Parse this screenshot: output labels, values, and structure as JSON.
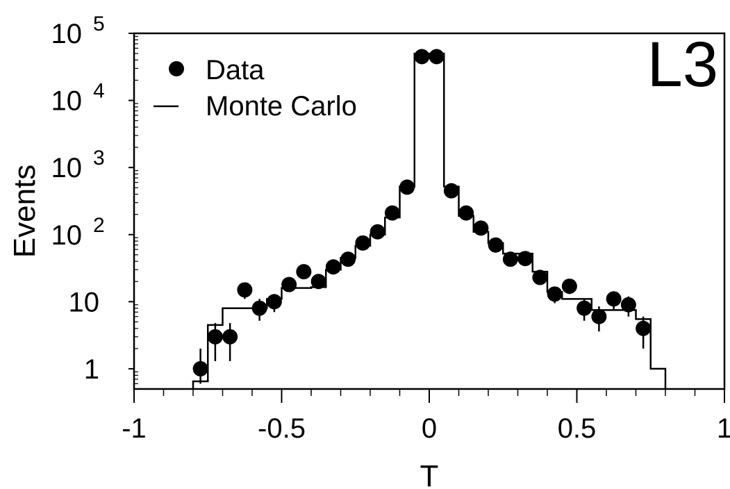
{
  "chart_data": {
    "type": "scatter",
    "xlabel": "T",
    "ylabel": "Events",
    "corner_label": "L3",
    "xlim": [
      -1,
      1
    ],
    "ylim": [
      0.5,
      100000
    ],
    "y_scale": "log",
    "grid": false,
    "legend_position": "top-left",
    "x_ticks": [
      {
        "value": -1,
        "label": "-1"
      },
      {
        "value": -0.5,
        "label": "-0.5"
      },
      {
        "value": 0,
        "label": "0"
      },
      {
        "value": 0.5,
        "label": "0.5"
      },
      {
        "value": 1,
        "label": "1"
      }
    ],
    "y_ticks": [
      {
        "value": 1,
        "label": "1"
      },
      {
        "value": 10,
        "label": "10"
      },
      {
        "value": 100,
        "base": "10",
        "exp": "2"
      },
      {
        "value": 1000,
        "base": "10",
        "exp": "3"
      },
      {
        "value": 10000,
        "base": "10",
        "exp": "4"
      },
      {
        "value": 100000,
        "base": "10",
        "exp": "5"
      }
    ],
    "series": [
      {
        "name": "Data",
        "kind": "points",
        "points": [
          {
            "x": -0.775,
            "y": 1,
            "lo": 0.6,
            "hi": 2.0
          },
          {
            "x": -0.725,
            "y": 3,
            "lo": 1.3,
            "hi": 4.8
          },
          {
            "x": -0.675,
            "y": 3,
            "lo": 1.3,
            "hi": 4.8
          },
          {
            "x": -0.625,
            "y": 15,
            "lo": 11,
            "hi": 19
          },
          {
            "x": -0.575,
            "y": 8,
            "lo": 5.2,
            "hi": 11
          },
          {
            "x": -0.525,
            "y": 10,
            "lo": 7,
            "hi": 13
          },
          {
            "x": -0.475,
            "y": 18,
            "lo": 14,
            "hi": 22
          },
          {
            "x": -0.425,
            "y": 28,
            "lo": 23,
            "hi": 33
          },
          {
            "x": -0.375,
            "y": 20,
            "lo": 16,
            "hi": 24
          },
          {
            "x": -0.325,
            "y": 33,
            "lo": 28,
            "hi": 39
          },
          {
            "x": -0.275,
            "y": 43,
            "lo": 37,
            "hi": 49
          },
          {
            "x": -0.225,
            "y": 75,
            "lo": 66,
            "hi": 84
          },
          {
            "x": -0.175,
            "y": 110,
            "lo": 100,
            "hi": 120
          },
          {
            "x": -0.125,
            "y": 210,
            "lo": 195,
            "hi": 225
          },
          {
            "x": -0.075,
            "y": 510,
            "lo": 488,
            "hi": 532
          },
          {
            "x": -0.025,
            "y": 45000,
            "lo": 44800,
            "hi": 45200
          },
          {
            "x": 0.025,
            "y": 45000,
            "lo": 44800,
            "hi": 45200
          },
          {
            "x": 0.075,
            "y": 450,
            "lo": 429,
            "hi": 471
          },
          {
            "x": 0.125,
            "y": 210,
            "lo": 195,
            "hi": 225
          },
          {
            "x": 0.175,
            "y": 125,
            "lo": 114,
            "hi": 136
          },
          {
            "x": 0.225,
            "y": 70,
            "lo": 62,
            "hi": 78
          },
          {
            "x": 0.275,
            "y": 43,
            "lo": 37,
            "hi": 49
          },
          {
            "x": 0.325,
            "y": 44,
            "lo": 38,
            "hi": 50
          },
          {
            "x": 0.375,
            "y": 23,
            "lo": 18.5,
            "hi": 27.5
          },
          {
            "x": 0.425,
            "y": 13,
            "lo": 9.5,
            "hi": 16.5
          },
          {
            "x": 0.475,
            "y": 17,
            "lo": 13,
            "hi": 21
          },
          {
            "x": 0.525,
            "y": 8,
            "lo": 5.2,
            "hi": 11
          },
          {
            "x": 0.575,
            "y": 6,
            "lo": 3.6,
            "hi": 8.5
          },
          {
            "x": 0.625,
            "y": 11,
            "lo": 7.7,
            "hi": 14.3
          },
          {
            "x": 0.675,
            "y": 9,
            "lo": 6,
            "hi": 12
          },
          {
            "x": 0.725,
            "y": 4,
            "lo": 2,
            "hi": 6
          }
        ]
      },
      {
        "name": "Monte Carlo",
        "kind": "step",
        "bins": [
          {
            "x0": -0.8,
            "x1": -0.75,
            "y": 0.65
          },
          {
            "x0": -0.75,
            "x1": -0.7,
            "y": 4.5
          },
          {
            "x0": -0.7,
            "x1": -0.65,
            "y": 8
          },
          {
            "x0": -0.65,
            "x1": -0.6,
            "y": 8
          },
          {
            "x0": -0.6,
            "x1": -0.55,
            "y": 8
          },
          {
            "x0": -0.55,
            "x1": -0.5,
            "y": 11
          },
          {
            "x0": -0.5,
            "x1": -0.45,
            "y": 16
          },
          {
            "x0": -0.45,
            "x1": -0.4,
            "y": 16
          },
          {
            "x0": -0.4,
            "x1": -0.35,
            "y": 16.5
          },
          {
            "x0": -0.35,
            "x1": -0.3,
            "y": 30
          },
          {
            "x0": -0.3,
            "x1": -0.25,
            "y": 45
          },
          {
            "x0": -0.25,
            "x1": -0.2,
            "y": 68
          },
          {
            "x0": -0.2,
            "x1": -0.15,
            "y": 100
          },
          {
            "x0": -0.15,
            "x1": -0.1,
            "y": 180
          },
          {
            "x0": -0.1,
            "x1": -0.05,
            "y": 520
          },
          {
            "x0": -0.05,
            "x1": 0.05,
            "y": 50000
          },
          {
            "x0": 0.05,
            "x1": 0.1,
            "y": 520
          },
          {
            "x0": 0.1,
            "x1": 0.15,
            "y": 190
          },
          {
            "x0": 0.15,
            "x1": 0.2,
            "y": 110
          },
          {
            "x0": 0.2,
            "x1": 0.25,
            "y": 75
          },
          {
            "x0": 0.25,
            "x1": 0.3,
            "y": 52
          },
          {
            "x0": 0.3,
            "x1": 0.35,
            "y": 52
          },
          {
            "x0": 0.35,
            "x1": 0.4,
            "y": 28
          },
          {
            "x0": 0.4,
            "x1": 0.45,
            "y": 14
          },
          {
            "x0": 0.45,
            "x1": 0.5,
            "y": 11
          },
          {
            "x0": 0.5,
            "x1": 0.55,
            "y": 11
          },
          {
            "x0": 0.55,
            "x1": 0.6,
            "y": 7.5
          },
          {
            "x0": 0.6,
            "x1": 0.65,
            "y": 7.5
          },
          {
            "x0": 0.65,
            "x1": 0.7,
            "y": 7.5
          },
          {
            "x0": 0.7,
            "x1": 0.75,
            "y": 5.5
          },
          {
            "x0": 0.75,
            "x1": 0.8,
            "y": 1.0
          }
        ]
      }
    ]
  }
}
